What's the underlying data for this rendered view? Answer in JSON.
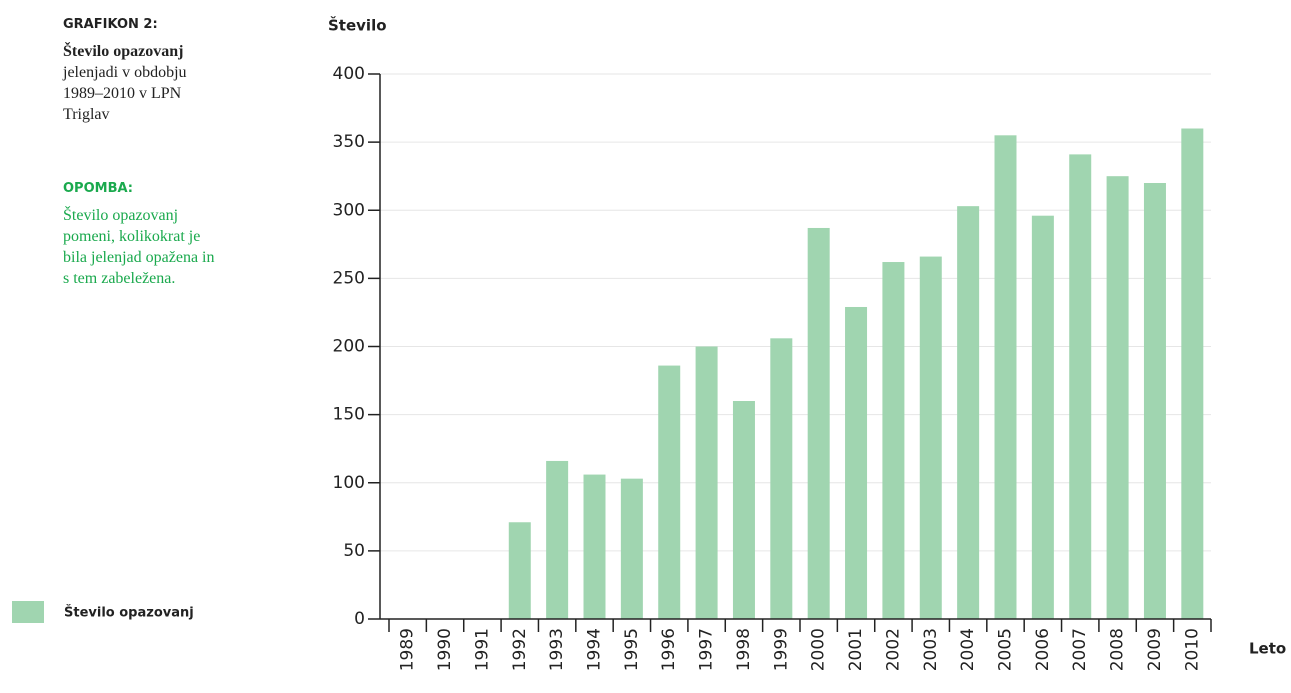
{
  "chart_data": {
    "type": "bar",
    "caption_label": "GRAFIKON 2:",
    "caption_title": "Število opazovanj",
    "caption_text": "jelenjadi v obdobju 1989–2010 v LPN Triglav",
    "note_label": "OPOMBA:",
    "note_text": "Število opazovanj pomeni, kolikokrat je bila jelenjad opažena in s tem zabeležena.",
    "y_label": "Število",
    "x_label": "Leto",
    "categories": [
      "1989",
      "1990",
      "1991",
      "1992",
      "1993",
      "1994",
      "1995",
      "1996",
      "1997",
      "1998",
      "1999",
      "2000",
      "2001",
      "2002",
      "2003",
      "2004",
      "2005",
      "2006",
      "2007",
      "2008",
      "2009",
      "2010"
    ],
    "series": [
      {
        "name": "Število opazovanj",
        "color": "#a0d5b0",
        "values": [
          0,
          0,
          0,
          71,
          116,
          106,
          103,
          186,
          200,
          160,
          206,
          287,
          229,
          262,
          266,
          303,
          355,
          296,
          341,
          325,
          320,
          360
        ]
      }
    ],
    "ylim": [
      0,
      400
    ],
    "yticks": [
      0,
      50,
      100,
      150,
      200,
      250,
      300,
      350,
      400
    ],
    "grid": true,
    "legend": "bottom-left"
  }
}
